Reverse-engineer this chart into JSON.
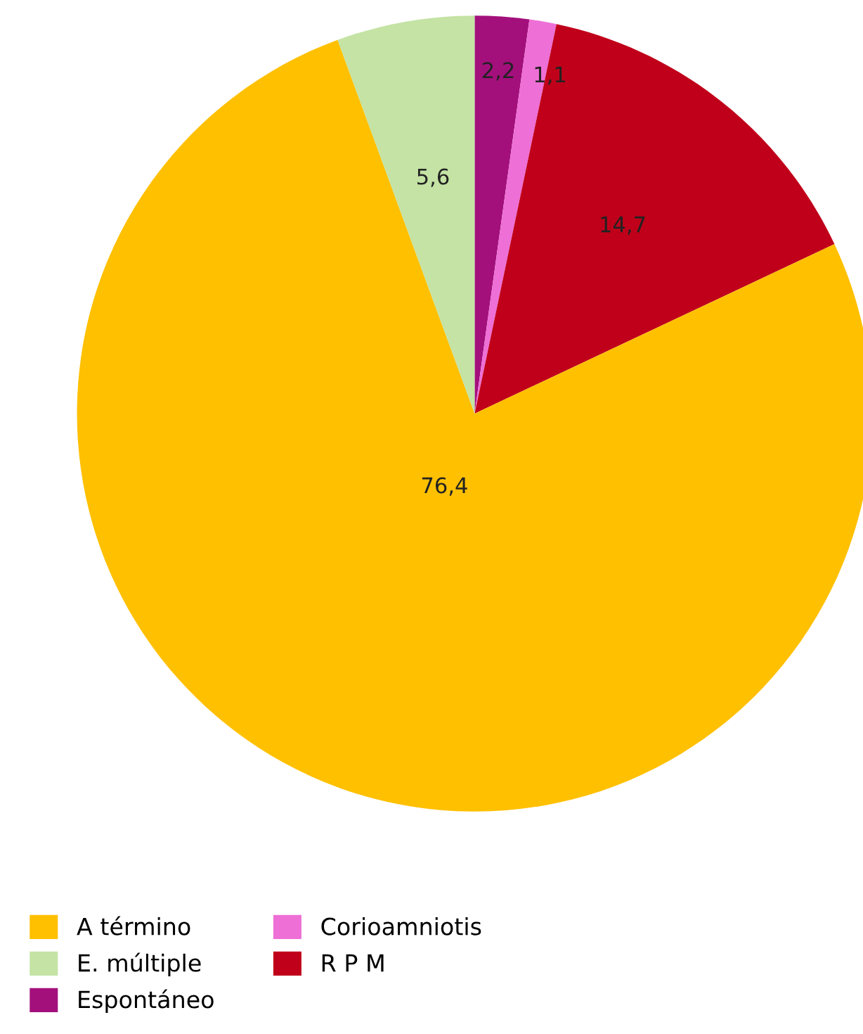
{
  "chart_data": {
    "type": "pie",
    "categories": [
      "Espontáneo",
      "Corioamniotis",
      "R P M",
      "A término",
      "E. múltiple"
    ],
    "values": [
      2.2,
      1.1,
      14.7,
      76.4,
      5.6
    ],
    "colors": [
      "#a3107c",
      "#ee6fd6",
      "#c0001a",
      "#ffc000",
      "#c4e3a4"
    ],
    "value_labels": [
      "2,2",
      "1,1",
      "14,7",
      "76,4",
      "5,6"
    ],
    "legend": "bottom left"
  }
}
